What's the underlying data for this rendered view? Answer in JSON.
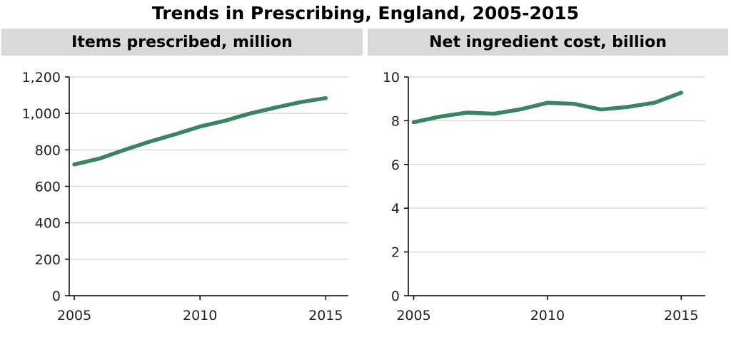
{
  "title": "Trends in Prescribing, England, 2005-2015",
  "colors": {
    "series": "#3a8463",
    "panel_header_bg": "#d9d9d9",
    "gridline": "#d9d9d9"
  },
  "chart_data": [
    {
      "type": "line",
      "title": "Items prescribed, million",
      "x": [
        2005,
        2006,
        2007,
        2008,
        2009,
        2010,
        2011,
        2012,
        2013,
        2014,
        2015
      ],
      "series": [
        {
          "values": [
            720,
            752,
            800,
            845,
            885,
            928,
            960,
            1000,
            1032,
            1062,
            1084
          ]
        }
      ],
      "ylim": [
        0,
        1200
      ],
      "yticks": [
        0,
        200,
        400,
        600,
        800,
        1000,
        1200
      ],
      "ytick_labels": [
        "0",
        "200",
        "400",
        "600",
        "800",
        "1,000",
        "1,200"
      ],
      "xticks": [
        2005,
        2010,
        2015
      ],
      "xtick_labels": [
        "2005",
        "2010",
        "2015"
      ],
      "grid": true
    },
    {
      "type": "line",
      "title": "Net ingredient cost, billion",
      "x": [
        2005,
        2006,
        2007,
        2008,
        2009,
        2010,
        2011,
        2012,
        2013,
        2014,
        2015
      ],
      "series": [
        {
          "values": [
            7.93,
            8.19,
            8.37,
            8.32,
            8.52,
            8.82,
            8.77,
            8.51,
            8.63,
            8.82,
            9.28
          ]
        }
      ],
      "ylim": [
        0,
        10
      ],
      "yticks": [
        0,
        2,
        4,
        6,
        8,
        10
      ],
      "ytick_labels": [
        "0",
        "2",
        "4",
        "6",
        "8",
        "10"
      ],
      "xticks": [
        2005,
        2010,
        2015
      ],
      "xtick_labels": [
        "2005",
        "2010",
        "2015"
      ],
      "grid": true
    }
  ]
}
